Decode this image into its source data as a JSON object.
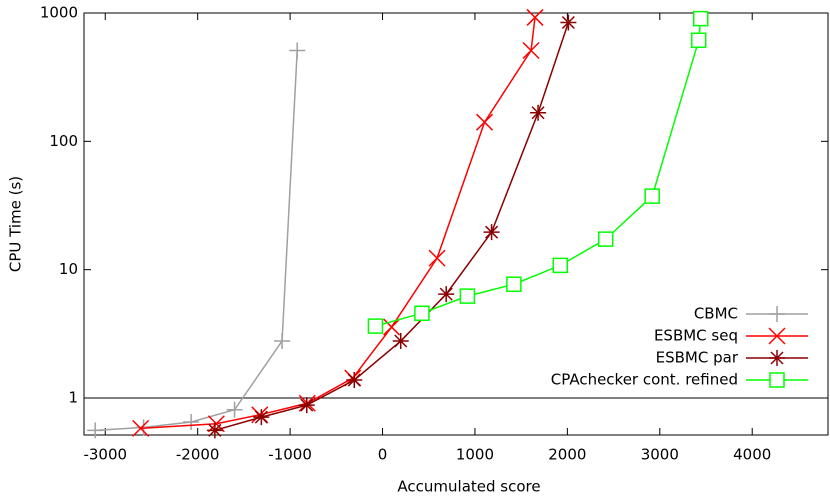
{
  "chart_data": {
    "type": "line",
    "x_label": "Accumulated score",
    "y_label": "CPU Time (s)",
    "xlim": [
      -3230,
      4820
    ],
    "ylim": [
      0.515,
      1000
    ],
    "y_scale": "log",
    "xticks": [
      -3000,
      -2000,
      -1000,
      0,
      1000,
      2000,
      3000,
      4000
    ],
    "yticks": [
      1,
      10,
      100,
      1000
    ],
    "hline": 1,
    "legend": "lower right",
    "series": [
      {
        "name": "CBMC",
        "color": "#a0a0a0",
        "marker": "plus",
        "x": [
          -3109,
          -2585,
          -2071,
          -1601,
          -1087,
          -923
        ],
        "y": [
          0.56,
          0.59,
          0.65,
          0.81,
          2.78,
          510
        ]
      },
      {
        "name": "ESBMC seq",
        "color": "#ff0000",
        "marker": "cross",
        "x": [
          -2617,
          -1798,
          -1328,
          -814,
          -322,
          98,
          590,
          1104,
          1607,
          1650
        ],
        "y": [
          0.58,
          0.63,
          0.74,
          0.91,
          1.43,
          3.57,
          12.3,
          141,
          510,
          923
        ]
      },
      {
        "name": "ESBMC par",
        "color": "#8b0000",
        "marker": "star",
        "x": [
          -1814,
          -1311,
          -820,
          -306,
          197,
          689,
          1180,
          1683,
          2011
        ],
        "y": [
          0.56,
          0.71,
          0.88,
          1.38,
          2.78,
          6.45,
          19.6,
          167,
          843
        ]
      },
      {
        "name": "CPAchecker cont. refined",
        "color": "#00ff00",
        "marker": "square",
        "x": [
          -77,
          426,
          918,
          1421,
          1923,
          2415,
          2918,
          3421,
          3443
        ],
        "y": [
          3.63,
          4.58,
          6.22,
          7.7,
          10.8,
          17.3,
          37.4,
          613,
          905
        ]
      }
    ]
  }
}
